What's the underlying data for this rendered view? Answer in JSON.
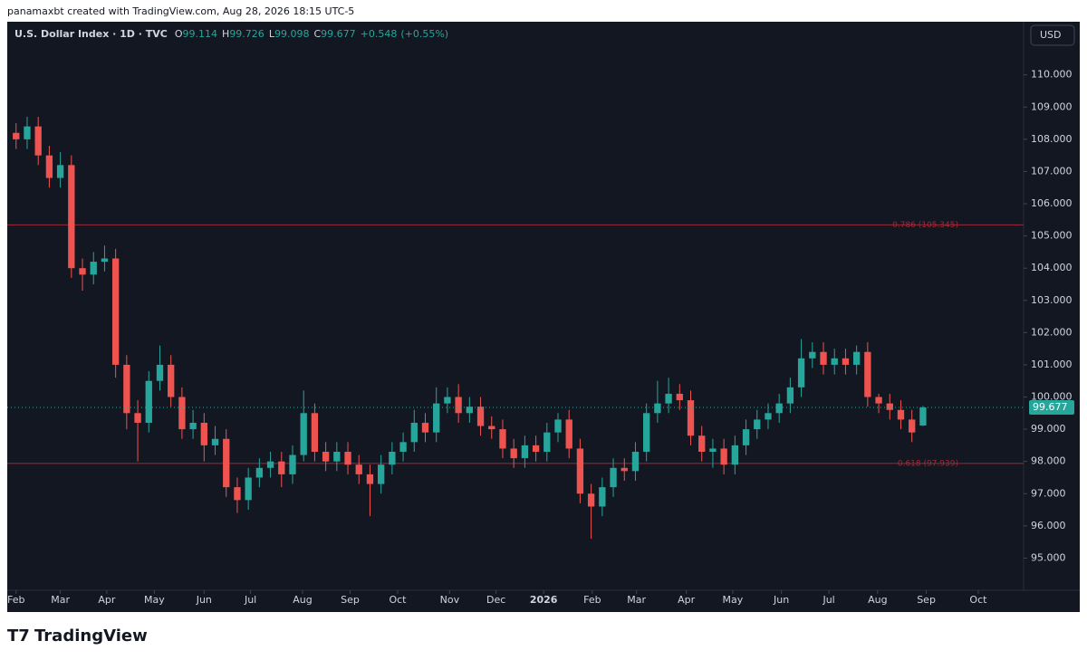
{
  "header": {
    "credit": "panamaxbt created with TradingView.com, Aug 28, 2026 18:15 UTC-5",
    "currency_button": "USD"
  },
  "footer": {
    "brand": "TradingView"
  },
  "chart_data": {
    "type": "candlestick",
    "title": "U.S. Dollar Index · 1D · TVC",
    "ohlc_labels": [
      "O",
      "H",
      "L",
      "C"
    ],
    "change": "+0.548",
    "change_pct": "(+0.55%)",
    "up_color": "#26a69a",
    "down_color": "#ef5350",
    "x": [
      0,
      1,
      2,
      3,
      4,
      5,
      6,
      7,
      8,
      9,
      10,
      11,
      12,
      13,
      14,
      15,
      16,
      17,
      18,
      19,
      20,
      21,
      22,
      23,
      24,
      25,
      26,
      27,
      28,
      29,
      30,
      31,
      32,
      33,
      34,
      35,
      36,
      37,
      38,
      39,
      40,
      41,
      42,
      43,
      44,
      45,
      46,
      47,
      48,
      49,
      50,
      51,
      52,
      53,
      54,
      55,
      56,
      57,
      58,
      59,
      60,
      61,
      62,
      63,
      64,
      65,
      66,
      67,
      68,
      69,
      70,
      71,
      72,
      73,
      74,
      75,
      76,
      77,
      78,
      79,
      80,
      81,
      82
    ],
    "open": [
      108.2,
      108.0,
      108.4,
      107.5,
      106.8,
      107.2,
      104.0,
      103.8,
      104.2,
      104.3,
      101.0,
      99.5,
      99.2,
      100.5,
      101.0,
      100.0,
      99.0,
      99.2,
      98.5,
      98.7,
      97.2,
      96.8,
      97.5,
      97.8,
      98.0,
      97.6,
      98.2,
      99.5,
      98.3,
      98.0,
      98.3,
      97.9,
      97.6,
      97.3,
      97.9,
      98.3,
      98.6,
      99.2,
      98.9,
      99.8,
      100.0,
      99.5,
      99.7,
      99.1,
      99.0,
      98.4,
      98.1,
      98.5,
      98.3,
      98.9,
      99.3,
      98.4,
      97.0,
      96.6,
      97.2,
      97.8,
      97.7,
      98.3,
      99.5,
      99.8,
      100.1,
      99.9,
      98.8,
      98.3,
      98.4,
      97.9,
      98.5,
      99.0,
      99.3,
      99.5,
      99.8,
      100.3,
      101.2,
      101.4,
      101.0,
      101.2,
      101.0,
      101.4,
      100.0,
      99.8,
      99.6,
      99.3,
      99.114
    ],
    "high": [
      108.5,
      108.7,
      108.7,
      107.8,
      107.6,
      107.5,
      104.3,
      104.5,
      104.7,
      104.6,
      101.3,
      99.9,
      100.8,
      101.6,
      101.3,
      100.3,
      99.6,
      99.5,
      99.1,
      99.0,
      97.5,
      97.8,
      98.1,
      98.3,
      98.3,
      98.5,
      100.2,
      99.8,
      98.6,
      98.6,
      98.6,
      98.2,
      97.9,
      98.2,
      98.6,
      98.9,
      99.6,
      99.5,
      100.3,
      100.3,
      100.4,
      100.0,
      100.0,
      99.4,
      99.3,
      98.7,
      98.8,
      98.8,
      99.2,
      99.5,
      99.6,
      98.7,
      97.3,
      97.5,
      98.1,
      98.1,
      98.6,
      99.8,
      100.5,
      100.6,
      100.4,
      100.2,
      99.1,
      98.7,
      98.7,
      98.8,
      99.3,
      99.6,
      99.8,
      100.1,
      100.6,
      101.8,
      101.7,
      101.7,
      101.5,
      101.5,
      101.6,
      101.7,
      100.1,
      100.1,
      99.9,
      99.6,
      99.726
    ],
    "low": [
      107.7,
      107.7,
      107.2,
      106.5,
      106.5,
      103.7,
      103.3,
      103.5,
      103.9,
      100.6,
      99.0,
      98.0,
      98.9,
      100.2,
      99.7,
      98.7,
      98.7,
      98.0,
      98.2,
      96.9,
      96.4,
      96.5,
      97.2,
      97.5,
      97.2,
      97.3,
      98.0,
      98.0,
      97.7,
      97.7,
      97.6,
      97.3,
      96.3,
      97.0,
      97.6,
      98.0,
      98.3,
      98.6,
      98.6,
      99.5,
      99.2,
      99.2,
      98.8,
      98.7,
      98.1,
      97.8,
      97.8,
      98.0,
      98.0,
      98.6,
      98.1,
      96.7,
      95.6,
      96.3,
      96.9,
      97.4,
      97.4,
      98.0,
      99.2,
      99.5,
      99.6,
      98.5,
      98.0,
      97.8,
      97.6,
      97.6,
      98.2,
      98.7,
      99.0,
      99.2,
      99.5,
      100.0,
      100.9,
      100.7,
      100.7,
      100.7,
      100.7,
      99.7,
      99.5,
      99.3,
      99.0,
      98.6,
      99.098
    ],
    "close": [
      108.0,
      108.4,
      107.5,
      106.8,
      107.2,
      104.0,
      103.8,
      104.2,
      104.3,
      101.0,
      99.5,
      99.2,
      100.5,
      101.0,
      100.0,
      99.0,
      99.2,
      98.5,
      98.7,
      97.2,
      96.8,
      97.5,
      97.8,
      98.0,
      97.6,
      98.2,
      99.5,
      98.3,
      98.0,
      98.3,
      97.9,
      97.6,
      97.3,
      97.9,
      98.3,
      98.6,
      99.2,
      98.9,
      99.8,
      100.0,
      99.5,
      99.7,
      99.1,
      99.0,
      98.4,
      98.1,
      98.5,
      98.3,
      98.9,
      99.3,
      98.4,
      97.0,
      96.6,
      97.2,
      97.8,
      97.7,
      98.3,
      99.5,
      99.8,
      100.1,
      99.9,
      98.8,
      98.3,
      98.4,
      97.9,
      98.5,
      99.0,
      99.3,
      99.5,
      99.8,
      100.3,
      101.2,
      101.4,
      101.0,
      101.2,
      101.0,
      101.4,
      100.0,
      99.8,
      99.6,
      99.3,
      98.9,
      99.677
    ],
    "xlim": [
      -0.8,
      91.1
    ],
    "ylim": [
      94.0,
      111.65
    ],
    "xticks": [
      {
        "value": 0,
        "label": "Feb"
      },
      {
        "value": 4,
        "label": "Mar"
      },
      {
        "value": 8.2,
        "label": "Apr"
      },
      {
        "value": 12.5,
        "label": "May"
      },
      {
        "value": 17,
        "label": "Jun"
      },
      {
        "value": 21.2,
        "label": "Jul"
      },
      {
        "value": 25.9,
        "label": "Aug"
      },
      {
        "value": 30.2,
        "label": "Sep"
      },
      {
        "value": 34.5,
        "label": "Oct"
      },
      {
        "value": 39.2,
        "label": "Nov"
      },
      {
        "value": 43.4,
        "label": "Dec"
      },
      {
        "value": 47.7,
        "label": "2026"
      },
      {
        "value": 52.1,
        "label": "Feb"
      },
      {
        "value": 56.1,
        "label": "Mar"
      },
      {
        "value": 60.6,
        "label": "Apr"
      },
      {
        "value": 64.8,
        "label": "May"
      },
      {
        "value": 69.2,
        "label": "Jun"
      },
      {
        "value": 73.5,
        "label": "Jul"
      },
      {
        "value": 77.9,
        "label": "Aug"
      },
      {
        "value": 82.3,
        "label": "Sep"
      },
      {
        "value": 87.0,
        "label": "Oct"
      }
    ],
    "yticks": [
      {
        "value": 95,
        "label": "95.000"
      },
      {
        "value": 96,
        "label": "96.000"
      },
      {
        "value": 97,
        "label": "97.000"
      },
      {
        "value": 98,
        "label": "98.000"
      },
      {
        "value": 99,
        "label": "99.000"
      },
      {
        "value": 100,
        "label": "100.000"
      },
      {
        "value": 101,
        "label": "101.000"
      },
      {
        "value": 102,
        "label": "102.000"
      },
      {
        "value": 103,
        "label": "103.000"
      },
      {
        "value": 104,
        "label": "104.000"
      },
      {
        "value": 105,
        "label": "105.000"
      },
      {
        "value": 106,
        "label": "106.000"
      },
      {
        "value": 107,
        "label": "107.000"
      },
      {
        "value": 108,
        "label": "108.000"
      },
      {
        "value": 109,
        "label": "109.000"
      },
      {
        "value": 110,
        "label": "110.000"
      }
    ],
    "levels": [
      {
        "value": 105.345,
        "label": "0.786 (105.345)"
      },
      {
        "value": 97.939,
        "label": "0.618 (97.939)"
      }
    ],
    "level_color": "#9c2b3a"
  }
}
